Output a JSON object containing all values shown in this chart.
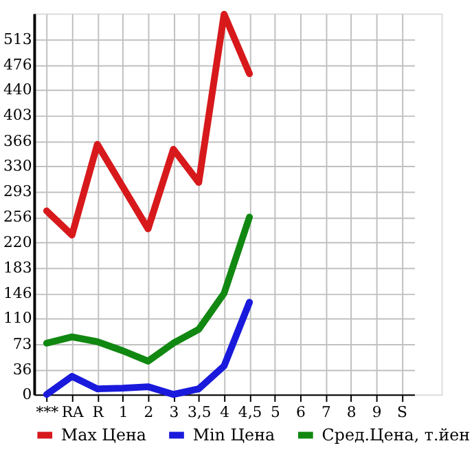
{
  "chart_data": {
    "type": "line",
    "categories": [
      "***",
      "RA",
      "R",
      "1",
      "2",
      "3",
      "3,5",
      "4",
      "4,5",
      "5",
      "6",
      "7",
      "8",
      "9",
      "S"
    ],
    "series": [
      {
        "name": "Max Цена",
        "color": "#d7191c",
        "values": [
          265,
          230,
          361,
          300,
          239,
          354,
          306,
          549,
          463,
          null,
          null,
          null,
          null,
          null,
          null
        ]
      },
      {
        "name": "Min Цена",
        "color": "#1a1adc",
        "values": [
          0,
          26,
          8,
          9,
          11,
          0,
          8,
          41,
          133,
          null,
          null,
          null,
          null,
          null,
          null
        ]
      },
      {
        "name": "Сред.Цена, т.йен",
        "color": "#118811",
        "values": [
          74,
          83,
          76,
          63,
          48,
          74,
          94,
          146,
          256,
          null,
          null,
          null,
          null,
          null,
          null
        ]
      }
    ],
    "ylim": [
      0,
      550
    ],
    "yticks": [
      0,
      36,
      73,
      110,
      146,
      183,
      220,
      256,
      293,
      330,
      366,
      403,
      440,
      476,
      513
    ],
    "grid": true,
    "legend": "bottom",
    "marker": "none",
    "line_style": "solid"
  }
}
